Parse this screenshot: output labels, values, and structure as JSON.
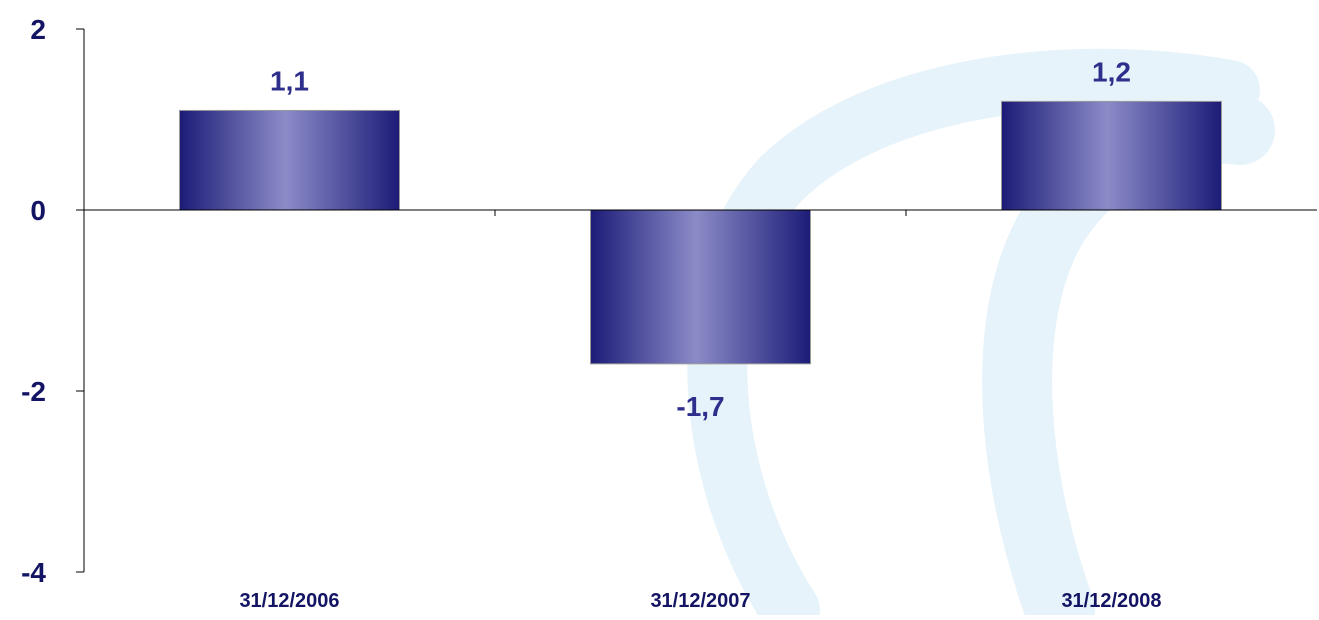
{
  "chart_data": {
    "type": "bar",
    "categories": [
      "31/12/2006",
      "31/12/2007",
      "31/12/2008"
    ],
    "values": [
      1.1,
      -1.7,
      1.2
    ],
    "data_labels": [
      "1,1",
      "-1,7",
      "1,2"
    ],
    "yticks": [
      2,
      0,
      -2,
      -4
    ],
    "ytick_labels": [
      "2",
      "0",
      "-2",
      "-4"
    ],
    "ylim": [
      -4,
      2
    ],
    "title": "",
    "xlabel": "",
    "ylabel": "",
    "grid": false,
    "legend": "none",
    "colors": {
      "bar_edge": "#1c1c78",
      "bar_center": "#8b8bc8",
      "label_text": "#2e2e8c",
      "tick_text": "#141464",
      "axis": "#000000",
      "watermark": "#e6f3fa"
    }
  }
}
